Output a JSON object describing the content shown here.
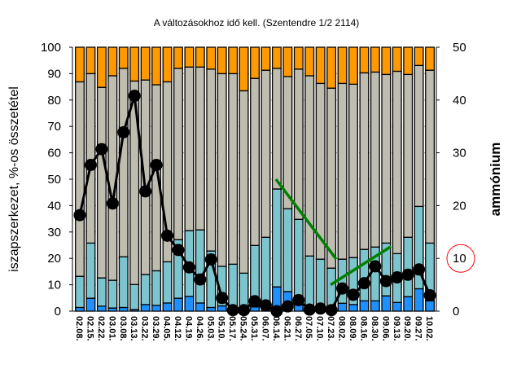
{
  "chart_data": {
    "type": "bar",
    "stacked": true,
    "title": "A változásokhoz idő kell. (Szentendre 1/2 2114)",
    "ylabel": "iszapszerkezet, %-os összetétel",
    "y2label": "ammónium",
    "ylim": [
      0,
      100
    ],
    "y2lim": [
      0,
      50
    ],
    "yticks": [
      "0",
      "10",
      "20",
      "30",
      "40",
      "50",
      "60",
      "70",
      "80",
      "90",
      "100"
    ],
    "y2ticks": [
      "0",
      "10",
      "20",
      "30",
      "40",
      "50"
    ],
    "highlighted_y2_tick": "10",
    "categories": [
      "02.08.",
      "02.15.",
      "02.22.",
      "03.01.",
      "03.08.",
      "03.13.",
      "03.22.",
      "03.29.",
      "04.05.",
      "04.12.",
      "04.19.",
      "04.26.",
      "05.03.",
      "05.10.",
      "05.17.",
      "05.24.",
      "05.31.",
      "06.07.",
      "06.14.",
      "06.21.",
      "06.27.",
      "07.05.",
      "07.10.",
      "07.23.",
      "08.02.",
      "08.09.",
      "08.16.",
      "08.30.",
      "09.06.",
      "09.13.",
      "09.20.",
      "09.27.",
      "10.02."
    ],
    "series": [
      {
        "name": "blue",
        "color": "#1E90FF",
        "values": [
          1.4,
          4.9,
          1.9,
          1.2,
          1.4,
          0.6,
          2.5,
          2.2,
          3.1,
          4.9,
          5.6,
          3.1,
          1.4,
          2.0,
          0,
          0,
          1.6,
          0,
          9.2,
          7.4,
          2.4,
          0,
          0,
          0,
          3.0,
          2.5,
          3.9,
          3.9,
          5.8,
          3.3,
          5.5,
          8.5,
          3.9
        ]
      },
      {
        "name": "teal",
        "color": "#7DC5CE",
        "values": [
          11.8,
          20.9,
          10.7,
          10.5,
          19.2,
          9.5,
          11.4,
          13.1,
          15.6,
          22.2,
          24.9,
          27.7,
          21.4,
          15.0,
          17.8,
          14.4,
          23.3,
          28.0,
          37.1,
          31.4,
          32.4,
          20.9,
          19.7,
          16.3,
          16.7,
          17.8,
          19.5,
          20.4,
          20.0,
          18.5,
          22.5,
          31.2,
          21.9
        ]
      },
      {
        "name": "gray",
        "color": "#BFBCB0",
        "values": [
          73.7,
          64.2,
          72.2,
          77.5,
          71.4,
          77.1,
          73.7,
          70.5,
          68.2,
          64.9,
          62.0,
          61.7,
          68.9,
          73.0,
          72.2,
          69.1,
          63.3,
          63.3,
          45.7,
          50.1,
          56.9,
          68.3,
          66.6,
          68.2,
          66.6,
          65.7,
          66.9,
          66.3,
          63.9,
          69.1,
          61.7,
          53.4,
          65.5
        ]
      },
      {
        "name": "orange",
        "color": "#FF9900",
        "values": [
          13.1,
          10.0,
          15.2,
          10.8,
          8.0,
          12.8,
          12.4,
          14.2,
          13.1,
          8.0,
          7.5,
          7.5,
          8.3,
          10.0,
          10.0,
          16.5,
          11.8,
          8.7,
          8.0,
          11.1,
          8.3,
          10.8,
          13.7,
          15.5,
          13.7,
          14.0,
          9.7,
          9.4,
          10.3,
          9.1,
          10.3,
          6.9,
          8.7
        ]
      }
    ],
    "line": {
      "name": "ammónium",
      "axis": "y2",
      "color": "#000000",
      "values": [
        18.2,
        27.7,
        30.7,
        20.4,
        33.9,
        40.8,
        22.7,
        27.7,
        14.3,
        11.6,
        8.3,
        6.0,
        9.8,
        2.5,
        0.2,
        0.2,
        1.9,
        1.1,
        0,
        0.9,
        2.1,
        0.3,
        0.5,
        0.2,
        4.3,
        3.1,
        5.3,
        8.5,
        5.7,
        6.4,
        6.9,
        7.9,
        3.0
      ]
    },
    "trend_annotations": [
      {
        "color": "#008000",
        "from": {
          "category": "06.14.",
          "y": 50
        },
        "to": {
          "category": "07.23.",
          "y": 19.7
        }
      },
      {
        "color": "#008000",
        "from": {
          "category": "07.23.",
          "y": 10
        },
        "to": {
          "category": "09.06.",
          "y": 24.5
        }
      }
    ],
    "grid": "horizontal dotted",
    "legend": "none"
  }
}
